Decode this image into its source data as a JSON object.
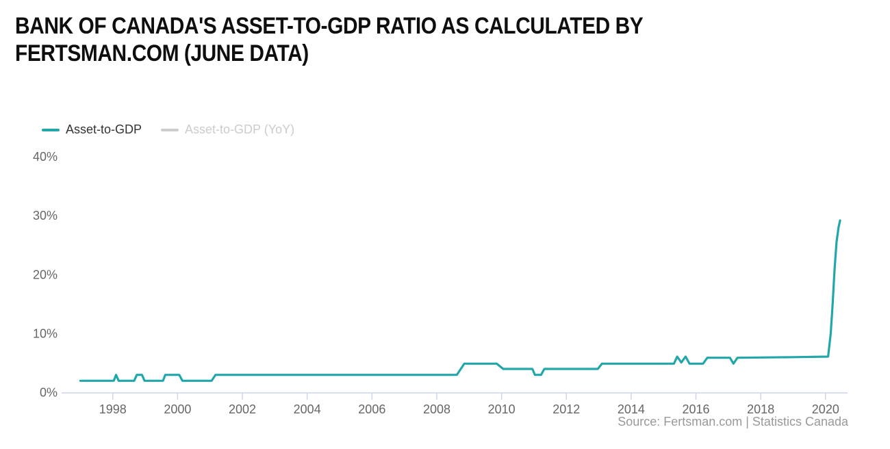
{
  "header": {
    "title_line1": "BANK OF CANADA'S ASSET-TO-GDP RATIO AS CALCULATED BY",
    "title_line2": "FERTSMAN.COM (JUNE DATA)"
  },
  "legend": {
    "position": "top-left",
    "items": [
      {
        "label": "Asset-to-GDP",
        "color": "#21a7aa",
        "enabled": true
      },
      {
        "label": "Asset-to-GDP (YoY)",
        "color": "#cccccc",
        "enabled": false
      }
    ]
  },
  "footer": {
    "source": "Source: Fertsman.com | Statistics Canada"
  },
  "chart_data": {
    "type": "line",
    "title": "BANK OF CANADA'S ASSET-TO-GDP RATIO AS CALCULATED BY FERTSMAN.COM (JUNE DATA)",
    "xlabel": "",
    "ylabel": "",
    "grid": false,
    "legend_position": "top-left",
    "xlim": [
      1996.42,
      2020.68
    ],
    "ylim": [
      0,
      40
    ],
    "x_ticks": [
      1998,
      2000,
      2002,
      2004,
      2006,
      2008,
      2010,
      2012,
      2014,
      2016,
      2018,
      2020
    ],
    "y_ticks": [
      {
        "value": 0,
        "label": "0%"
      },
      {
        "value": 10,
        "label": "10%"
      },
      {
        "value": 20,
        "label": "20%"
      },
      {
        "value": 30,
        "label": "30%"
      },
      {
        "value": 40,
        "label": "40%"
      }
    ],
    "axis_color": "#ccd6eb",
    "label_color": "#666666",
    "series": [
      {
        "name": "Asset-to-GDP",
        "color": "#21a7aa",
        "visible": true,
        "points": [
          [
            1997.0,
            2.0
          ],
          [
            1998.03,
            2.0
          ],
          [
            1998.1,
            3.0
          ],
          [
            1998.18,
            2.0
          ],
          [
            1998.66,
            2.0
          ],
          [
            1998.74,
            3.0
          ],
          [
            1998.9,
            3.0
          ],
          [
            1998.98,
            2.0
          ],
          [
            1999.55,
            2.0
          ],
          [
            1999.62,
            3.0
          ],
          [
            2000.05,
            3.0
          ],
          [
            2000.15,
            2.0
          ],
          [
            2001.05,
            2.0
          ],
          [
            2001.17,
            3.0
          ],
          [
            2008.62,
            3.0
          ],
          [
            2008.85,
            4.9
          ],
          [
            2009.85,
            4.9
          ],
          [
            2010.05,
            4.0
          ],
          [
            2010.95,
            4.0
          ],
          [
            2011.03,
            3.0
          ],
          [
            2011.22,
            3.0
          ],
          [
            2011.32,
            4.0
          ],
          [
            2012.97,
            4.0
          ],
          [
            2013.1,
            4.9
          ],
          [
            2015.32,
            4.9
          ],
          [
            2015.42,
            6.1
          ],
          [
            2015.55,
            5.1
          ],
          [
            2015.68,
            6.1
          ],
          [
            2015.8,
            4.9
          ],
          [
            2016.22,
            4.9
          ],
          [
            2016.35,
            5.9
          ],
          [
            2017.05,
            5.9
          ],
          [
            2017.16,
            4.9
          ],
          [
            2017.28,
            5.9
          ],
          [
            2019.0,
            6.0
          ],
          [
            2020.08,
            6.1
          ],
          [
            2020.16,
            10.0
          ],
          [
            2020.22,
            15.0
          ],
          [
            2020.28,
            21.0
          ],
          [
            2020.34,
            25.5
          ],
          [
            2020.4,
            28.0
          ],
          [
            2020.45,
            29.2
          ]
        ]
      },
      {
        "name": "Asset-to-GDP (YoY)",
        "color": "#cccccc",
        "visible": false,
        "points": []
      }
    ]
  }
}
